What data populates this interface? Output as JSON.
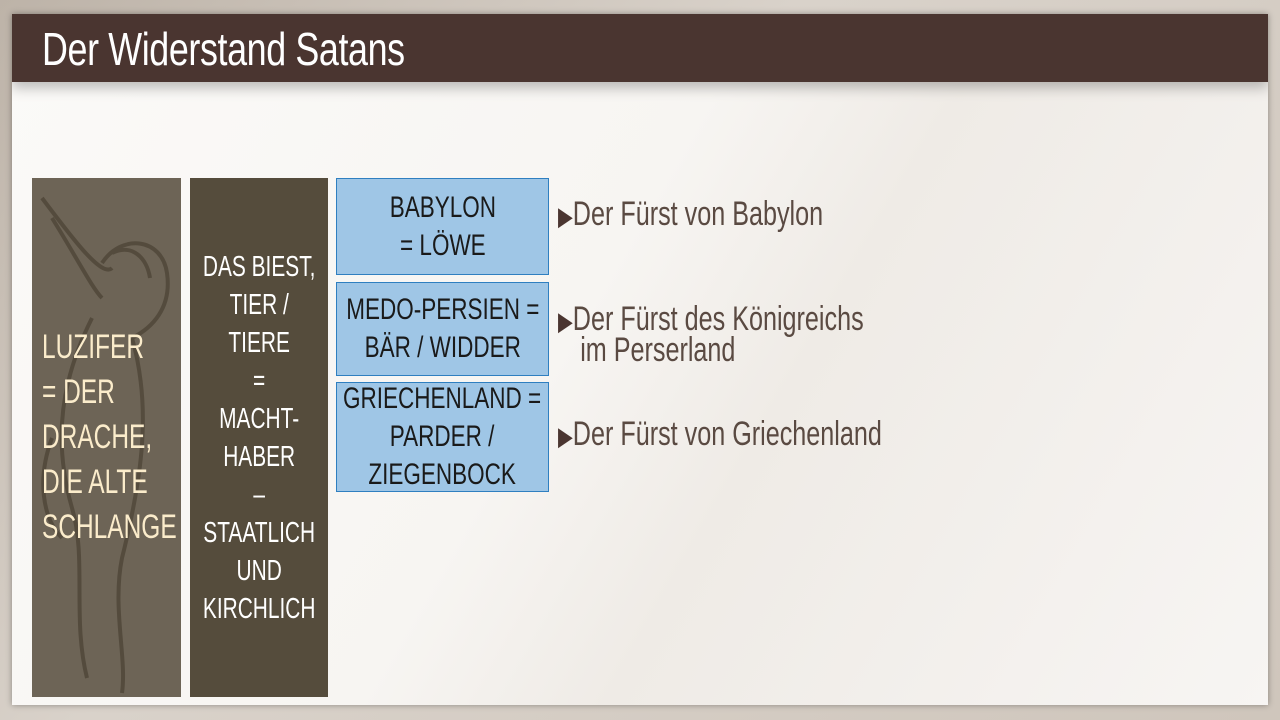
{
  "slide": {
    "title": "Der Widerstand Satans",
    "column1": {
      "lines": [
        "LUZIFER",
        "= DER",
        "DRACHE,",
        "DIE ALTE",
        "SCHLANGE"
      ],
      "image": "angel-illustration"
    },
    "column2": {
      "lines": [
        "DAS BIEST,",
        "TIER /",
        "TIERE",
        "=",
        "MACHT-",
        "HABER",
        "–",
        "STAATLICH",
        "UND",
        "KIRCHLICH"
      ]
    },
    "kingdoms": [
      {
        "lines": [
          "BABYLON",
          "= LÖWE"
        ]
      },
      {
        "lines": [
          "MEDO-PERSIEN =",
          "BÄR / WIDDER"
        ]
      },
      {
        "lines": [
          "GRIECHENLAND =",
          "PARDER /",
          "ZIEGENBOCK"
        ]
      }
    ],
    "bullet_icon": "▶",
    "princes": [
      {
        "lines": [
          "Der Fürst von Babylon"
        ]
      },
      {
        "lines": [
          "Der Fürst des Königreichs",
          "im Perserland"
        ]
      },
      {
        "lines": [
          "Der Fürst von Griechenland"
        ]
      }
    ],
    "colors": {
      "title_bar": "#4a3530",
      "column1": "#6d6456",
      "column2": "#554c3c",
      "box_fill": "#9fc6e6",
      "box_border": "#2f7fc0",
      "accent_text": "#fbeccb"
    }
  }
}
